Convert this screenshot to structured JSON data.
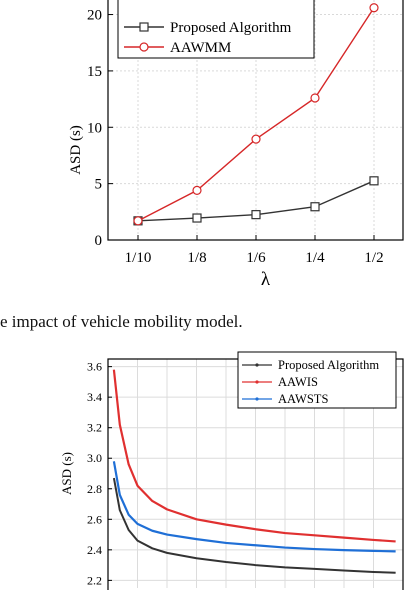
{
  "caption": "e impact of vehicle mobility model.",
  "chart_data": [
    {
      "type": "line",
      "categories": [
        "1/10",
        "1/8",
        "1/6",
        "1/4",
        "1/2"
      ],
      "xlabel": "λ",
      "ylabel": "ASD (s)",
      "ylim": [
        0,
        22
      ],
      "yticks": [
        0,
        5,
        10,
        15,
        20
      ],
      "grid": true,
      "legend_placement": "top-left",
      "series": [
        {
          "name": "Proposed Algorithm",
          "marker": "square",
          "color": "#333333",
          "values": [
            1.7,
            1.95,
            2.25,
            2.95,
            5.25
          ]
        },
        {
          "name": "AAWMM",
          "marker": "circle",
          "color": "#d62728",
          "values": [
            1.7,
            4.4,
            8.95,
            12.6,
            20.6
          ]
        }
      ]
    },
    {
      "type": "line",
      "xlabel": "",
      "ylabel": "ASD (s)",
      "xlim": [
        0,
        10
      ],
      "ylim": [
        2.15,
        3.65
      ],
      "yticks": [
        2.2,
        2.4,
        2.6,
        2.8,
        3.0,
        3.2,
        3.4,
        3.6
      ],
      "grid": true,
      "legend_placement": "top-right",
      "series": [
        {
          "name": "Proposed Algorithm",
          "color": "#333333",
          "x": [
            0.2,
            0.4,
            0.7,
            1.0,
            1.5,
            2.0,
            3.0,
            4.0,
            5.0,
            6.0,
            7.0,
            8.0,
            9.0,
            9.75
          ],
          "y": [
            2.87,
            2.66,
            2.53,
            2.46,
            2.41,
            2.38,
            2.345,
            2.32,
            2.3,
            2.285,
            2.275,
            2.265,
            2.255,
            2.25
          ]
        },
        {
          "name": "AAWIS",
          "color": "#e03030",
          "x": [
            0.2,
            0.4,
            0.7,
            1.0,
            1.5,
            2.0,
            3.0,
            4.0,
            5.0,
            6.0,
            7.0,
            8.0,
            9.0,
            9.75
          ],
          "y": [
            3.58,
            3.22,
            2.96,
            2.82,
            2.72,
            2.665,
            2.6,
            2.565,
            2.535,
            2.51,
            2.495,
            2.48,
            2.465,
            2.455
          ]
        },
        {
          "name": "AAWSTS",
          "color": "#1f6fd6",
          "x": [
            0.2,
            0.4,
            0.7,
            1.0,
            1.5,
            2.0,
            3.0,
            4.0,
            5.0,
            6.0,
            7.0,
            8.0,
            9.0,
            9.75
          ],
          "y": [
            2.98,
            2.76,
            2.63,
            2.57,
            2.525,
            2.5,
            2.47,
            2.445,
            2.43,
            2.415,
            2.405,
            2.398,
            2.393,
            2.39
          ]
        }
      ]
    }
  ]
}
